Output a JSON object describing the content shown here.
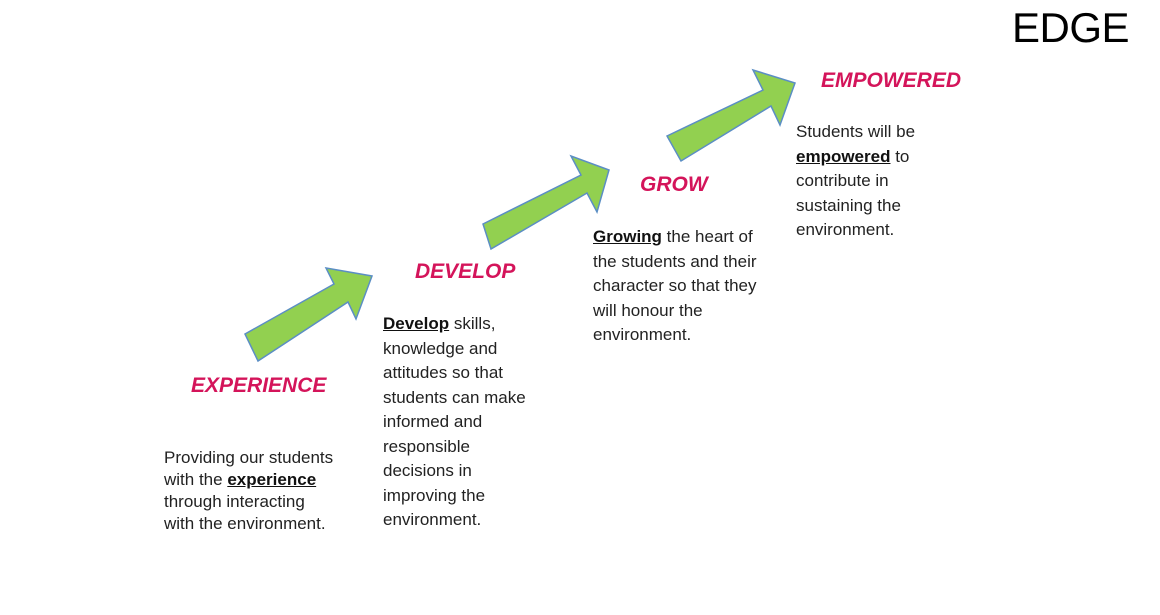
{
  "title": "EDGE",
  "colors": {
    "heading": "#d4145a",
    "arrow_fill": "#92d050",
    "arrow_stroke": "#5b8ec4",
    "text": "#222222"
  },
  "stages": [
    {
      "heading": "EXPERIENCE",
      "desc_pre": "Providing our students with the ",
      "desc_bold": "experience",
      "desc_post": " through interacting with the environment."
    },
    {
      "heading": "DEVELOP",
      "desc_pre": "",
      "desc_bold": "Develop",
      "desc_post": " skills, knowledge and attitudes so that students can make informed and responsible decisions in improving the environment."
    },
    {
      "heading": "GROW",
      "desc_pre": "",
      "desc_bold": "Growing",
      "desc_post": " the heart of the students and their character so that they will honour the environment."
    },
    {
      "heading": "EMPOWERED",
      "desc_pre": "Students will be ",
      "desc_bold": "empowered",
      "desc_post": " to contribute in sustaining the environment."
    }
  ]
}
